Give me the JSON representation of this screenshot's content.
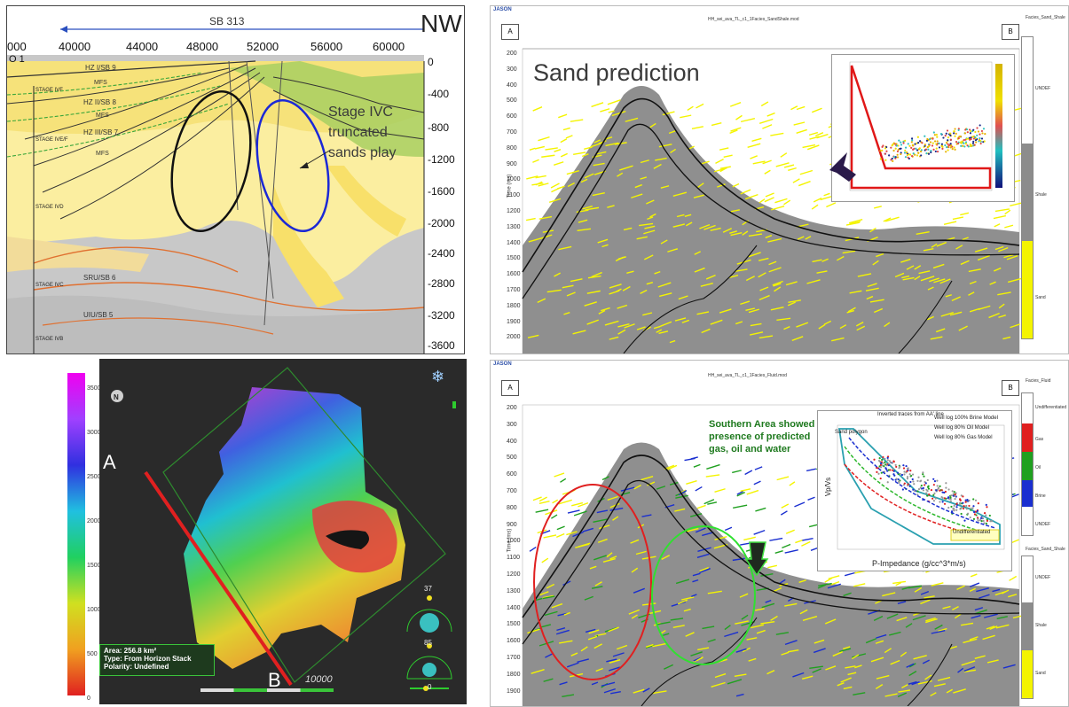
{
  "panel1": {
    "sb_label": "SB 313",
    "direction": "NW",
    "x_ticks": [
      "000",
      "40000",
      "44000",
      "48000",
      "52000",
      "56000",
      "60000"
    ],
    "corner": "O 1",
    "depth_ticks": [
      "0",
      "-400",
      "-800",
      "-1200",
      "-1600",
      "-2000",
      "-2400",
      "-2800",
      "-3200",
      "-3600"
    ],
    "horizons": [
      "HZ I/SB 9",
      "MFS",
      "HZ II/SB 8",
      "MFS",
      "HZ III/SB 7",
      "MFS",
      "SRU/SB 6",
      "UIU/SB 5"
    ],
    "stages": [
      "STAGE IVF",
      "STAGE IVE/F",
      "STAGE IVD",
      "STAGE IVC",
      "STAGE IVB"
    ],
    "annotation": [
      "Stage IVC",
      "truncated",
      "sands play"
    ]
  },
  "panel2": {
    "brand": "JASON",
    "file_title": "HH_sei_ava_TL_c1_1Facies_SandShale.mod",
    "well_a": "A",
    "well_b": "B",
    "heading": "Sand prediction",
    "axis_label": "Time (ms)",
    "time_ticks": [
      "200",
      "300",
      "400",
      "500",
      "600",
      "700",
      "800",
      "900",
      "1000",
      "1100",
      "1200",
      "1300",
      "1400",
      "1500",
      "1600",
      "1700",
      "1800",
      "1900",
      "2000"
    ],
    "legend_title": "Facies_Sand_Shale",
    "legend_items": [
      "UNDEF",
      "Shale",
      "Sand"
    ],
    "colors": {
      "sand": "#f4f400",
      "shale": "#8c8c8c",
      "undef": "#ffffff"
    }
  },
  "panel3": {
    "colorbar_ticks": [
      "3500",
      "3000",
      "2500",
      "2000",
      "1500",
      "1000",
      "500",
      "0"
    ],
    "point_a": "A",
    "point_b": "B",
    "compass": "N",
    "info": [
      "Area: 256.8 km²",
      "Type: From Horizon Stack",
      "Polarity: Undefined"
    ],
    "scale_value": "10000",
    "gauge_top": "37",
    "gauge_mid": "85",
    "gauge_bottom": "0"
  },
  "panel4": {
    "brand": "JASON",
    "file_title": "HH_sei_ava_TL_c1_1Facies_Fluid.mod",
    "well_a": "A",
    "well_b": "B",
    "axis_label": "Time (ms)",
    "time_ticks": [
      "200",
      "300",
      "400",
      "500",
      "600",
      "700",
      "800",
      "900",
      "1000",
      "1100",
      "1200",
      "1300",
      "1400",
      "1500",
      "1600",
      "1700",
      "1800",
      "1900"
    ],
    "annotation": [
      "Southern Area showed",
      "presence of predicted",
      "gas, oil and water"
    ],
    "crossplot": {
      "ylabel": "Vp/Vs",
      "xlabel": "P-Impedance (g/cc^3*m/s)",
      "legend": [
        "Inverted traces from AA' line",
        "Well log 100% Brine Model",
        "Well log 80% Oil Model",
        "Well log 80% Gas Model"
      ],
      "sand_polygon": "Sand polygon",
      "undiff": "Undifferentiated"
    },
    "legend1_title": "Facies_Fluid",
    "legend1_items": [
      "Undifferentiated",
      "Gas",
      "Oil",
      "Brine",
      "UNDEF"
    ],
    "legend2_title": "Facies_Sand_Shale",
    "legend2_items": [
      "UNDEF",
      "Shale",
      "Sand"
    ],
    "colors": {
      "gas": "#e02020",
      "oil": "#20a020",
      "brine": "#1a2fd0",
      "sand": "#f4f400",
      "shale": "#8c8c8c"
    }
  }
}
